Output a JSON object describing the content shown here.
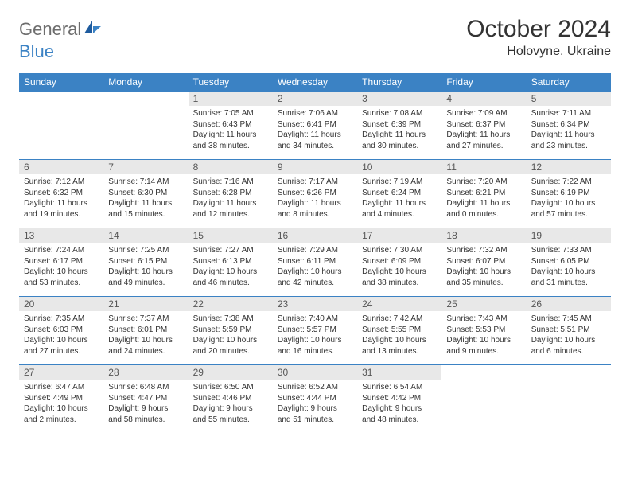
{
  "logo": {
    "text1": "General",
    "text2": "Blue"
  },
  "title": "October 2024",
  "location": "Holovyne, Ukraine",
  "colors": {
    "header_bg": "#3b82c4",
    "daynum_bg": "#e8e8e8",
    "border": "#3b82c4",
    "logo_gray": "#6d6d6d",
    "logo_blue": "#3b82c4"
  },
  "weekdays": [
    "Sunday",
    "Monday",
    "Tuesday",
    "Wednesday",
    "Thursday",
    "Friday",
    "Saturday"
  ],
  "weeks": [
    [
      null,
      null,
      {
        "n": "1",
        "sr": "Sunrise: 7:05 AM",
        "ss": "Sunset: 6:43 PM",
        "dl": "Daylight: 11 hours and 38 minutes."
      },
      {
        "n": "2",
        "sr": "Sunrise: 7:06 AM",
        "ss": "Sunset: 6:41 PM",
        "dl": "Daylight: 11 hours and 34 minutes."
      },
      {
        "n": "3",
        "sr": "Sunrise: 7:08 AM",
        "ss": "Sunset: 6:39 PM",
        "dl": "Daylight: 11 hours and 30 minutes."
      },
      {
        "n": "4",
        "sr": "Sunrise: 7:09 AM",
        "ss": "Sunset: 6:37 PM",
        "dl": "Daylight: 11 hours and 27 minutes."
      },
      {
        "n": "5",
        "sr": "Sunrise: 7:11 AM",
        "ss": "Sunset: 6:34 PM",
        "dl": "Daylight: 11 hours and 23 minutes."
      }
    ],
    [
      {
        "n": "6",
        "sr": "Sunrise: 7:12 AM",
        "ss": "Sunset: 6:32 PM",
        "dl": "Daylight: 11 hours and 19 minutes."
      },
      {
        "n": "7",
        "sr": "Sunrise: 7:14 AM",
        "ss": "Sunset: 6:30 PM",
        "dl": "Daylight: 11 hours and 15 minutes."
      },
      {
        "n": "8",
        "sr": "Sunrise: 7:16 AM",
        "ss": "Sunset: 6:28 PM",
        "dl": "Daylight: 11 hours and 12 minutes."
      },
      {
        "n": "9",
        "sr": "Sunrise: 7:17 AM",
        "ss": "Sunset: 6:26 PM",
        "dl": "Daylight: 11 hours and 8 minutes."
      },
      {
        "n": "10",
        "sr": "Sunrise: 7:19 AM",
        "ss": "Sunset: 6:24 PM",
        "dl": "Daylight: 11 hours and 4 minutes."
      },
      {
        "n": "11",
        "sr": "Sunrise: 7:20 AM",
        "ss": "Sunset: 6:21 PM",
        "dl": "Daylight: 11 hours and 0 minutes."
      },
      {
        "n": "12",
        "sr": "Sunrise: 7:22 AM",
        "ss": "Sunset: 6:19 PM",
        "dl": "Daylight: 10 hours and 57 minutes."
      }
    ],
    [
      {
        "n": "13",
        "sr": "Sunrise: 7:24 AM",
        "ss": "Sunset: 6:17 PM",
        "dl": "Daylight: 10 hours and 53 minutes."
      },
      {
        "n": "14",
        "sr": "Sunrise: 7:25 AM",
        "ss": "Sunset: 6:15 PM",
        "dl": "Daylight: 10 hours and 49 minutes."
      },
      {
        "n": "15",
        "sr": "Sunrise: 7:27 AM",
        "ss": "Sunset: 6:13 PM",
        "dl": "Daylight: 10 hours and 46 minutes."
      },
      {
        "n": "16",
        "sr": "Sunrise: 7:29 AM",
        "ss": "Sunset: 6:11 PM",
        "dl": "Daylight: 10 hours and 42 minutes."
      },
      {
        "n": "17",
        "sr": "Sunrise: 7:30 AM",
        "ss": "Sunset: 6:09 PM",
        "dl": "Daylight: 10 hours and 38 minutes."
      },
      {
        "n": "18",
        "sr": "Sunrise: 7:32 AM",
        "ss": "Sunset: 6:07 PM",
        "dl": "Daylight: 10 hours and 35 minutes."
      },
      {
        "n": "19",
        "sr": "Sunrise: 7:33 AM",
        "ss": "Sunset: 6:05 PM",
        "dl": "Daylight: 10 hours and 31 minutes."
      }
    ],
    [
      {
        "n": "20",
        "sr": "Sunrise: 7:35 AM",
        "ss": "Sunset: 6:03 PM",
        "dl": "Daylight: 10 hours and 27 minutes."
      },
      {
        "n": "21",
        "sr": "Sunrise: 7:37 AM",
        "ss": "Sunset: 6:01 PM",
        "dl": "Daylight: 10 hours and 24 minutes."
      },
      {
        "n": "22",
        "sr": "Sunrise: 7:38 AM",
        "ss": "Sunset: 5:59 PM",
        "dl": "Daylight: 10 hours and 20 minutes."
      },
      {
        "n": "23",
        "sr": "Sunrise: 7:40 AM",
        "ss": "Sunset: 5:57 PM",
        "dl": "Daylight: 10 hours and 16 minutes."
      },
      {
        "n": "24",
        "sr": "Sunrise: 7:42 AM",
        "ss": "Sunset: 5:55 PM",
        "dl": "Daylight: 10 hours and 13 minutes."
      },
      {
        "n": "25",
        "sr": "Sunrise: 7:43 AM",
        "ss": "Sunset: 5:53 PM",
        "dl": "Daylight: 10 hours and 9 minutes."
      },
      {
        "n": "26",
        "sr": "Sunrise: 7:45 AM",
        "ss": "Sunset: 5:51 PM",
        "dl": "Daylight: 10 hours and 6 minutes."
      }
    ],
    [
      {
        "n": "27",
        "sr": "Sunrise: 6:47 AM",
        "ss": "Sunset: 4:49 PM",
        "dl": "Daylight: 10 hours and 2 minutes."
      },
      {
        "n": "28",
        "sr": "Sunrise: 6:48 AM",
        "ss": "Sunset: 4:47 PM",
        "dl": "Daylight: 9 hours and 58 minutes."
      },
      {
        "n": "29",
        "sr": "Sunrise: 6:50 AM",
        "ss": "Sunset: 4:46 PM",
        "dl": "Daylight: 9 hours and 55 minutes."
      },
      {
        "n": "30",
        "sr": "Sunrise: 6:52 AM",
        "ss": "Sunset: 4:44 PM",
        "dl": "Daylight: 9 hours and 51 minutes."
      },
      {
        "n": "31",
        "sr": "Sunrise: 6:54 AM",
        "ss": "Sunset: 4:42 PM",
        "dl": "Daylight: 9 hours and 48 minutes."
      },
      null,
      null
    ]
  ]
}
